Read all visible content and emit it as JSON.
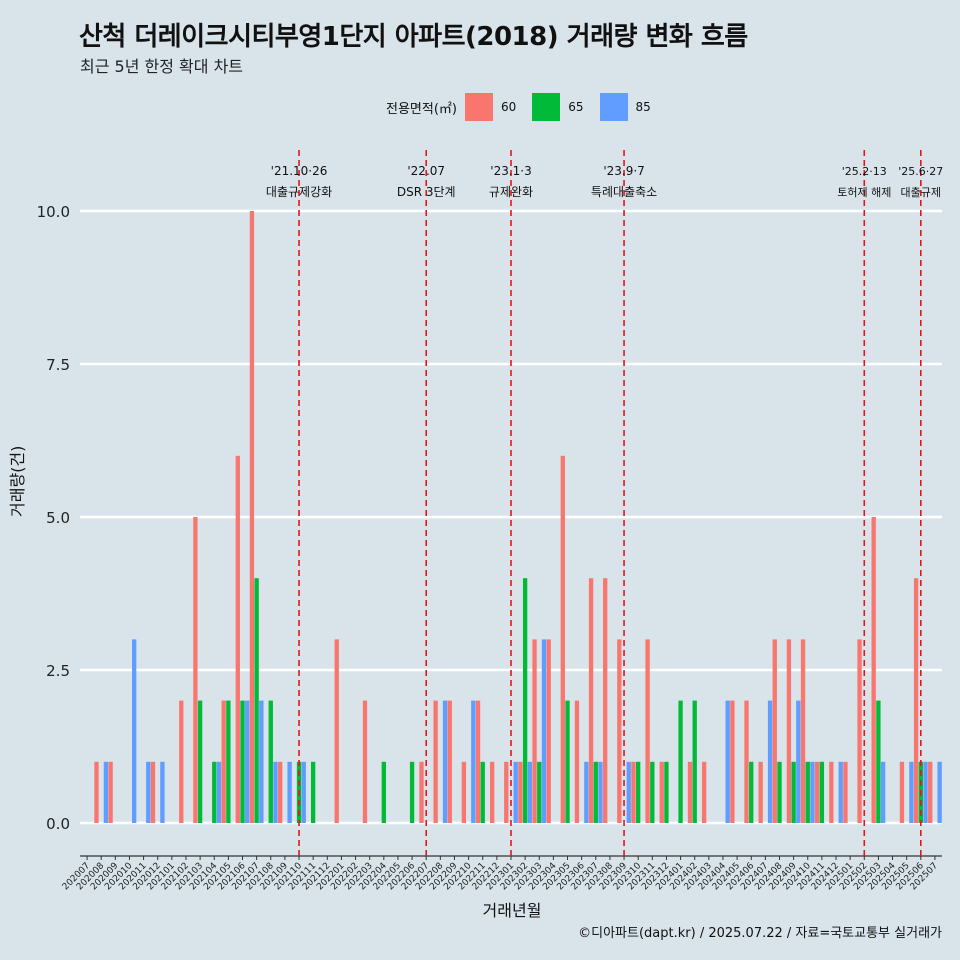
{
  "chart_data": {
    "type": "bar",
    "title": "산척 더레이크시티부영1단지 아파트(2018) 거래량 변화 흐름",
    "subtitle": "최근 5년 한정 확대 차트",
    "xlabel": "거래년월",
    "ylabel": "거래량(건)",
    "ylim": [
      0,
      10
    ],
    "yticks": [
      "0.0",
      "2.5",
      "5.0",
      "7.5",
      "10.0"
    ],
    "legend": {
      "title": "전용면적(㎡)",
      "position": "top",
      "items": [
        {
          "label": "60",
          "color": "#f8766d"
        },
        {
          "label": "65",
          "color": "#00ba38"
        },
        {
          "label": "85",
          "color": "#619cff"
        }
      ]
    },
    "categories": [
      "202007",
      "202008",
      "202009",
      "202010",
      "202011",
      "202012",
      "202101",
      "202102",
      "202103",
      "202104",
      "202105",
      "202106",
      "202107",
      "202108",
      "202109",
      "202110",
      "202111",
      "202112",
      "202201",
      "202202",
      "202203",
      "202204",
      "202205",
      "202206",
      "202207",
      "202208",
      "202209",
      "202210",
      "202211",
      "202212",
      "202301",
      "202302",
      "202303",
      "202304",
      "202305",
      "202306",
      "202307",
      "202308",
      "202309",
      "202310",
      "202311",
      "202312",
      "202401",
      "202402",
      "202403",
      "202404",
      "202405",
      "202406",
      "202407",
      "202408",
      "202409",
      "202410",
      "202411",
      "202412",
      "202501",
      "202502",
      "202503",
      "202504",
      "202505",
      "202506",
      "202507"
    ],
    "series": [
      {
        "name": "60",
        "values": [
          0,
          1,
          1,
          0,
          0,
          1,
          0,
          2,
          5,
          0,
          2,
          6,
          10,
          0,
          1,
          0,
          0,
          0,
          3,
          0,
          2,
          0,
          0,
          0,
          1,
          2,
          2,
          1,
          2,
          1,
          1,
          1,
          3,
          3,
          6,
          2,
          4,
          4,
          3,
          1,
          3,
          1,
          0,
          1,
          1,
          0,
          2,
          2,
          1,
          3,
          3,
          3,
          1,
          1,
          1,
          3,
          5,
          0,
          1,
          4,
          1
        ]
      },
      {
        "name": "65",
        "values": [
          0,
          0,
          0,
          0,
          0,
          0,
          0,
          0,
          2,
          1,
          2,
          2,
          4,
          2,
          0,
          1,
          1,
          0,
          0,
          0,
          0,
          1,
          0,
          1,
          0,
          0,
          0,
          0,
          1,
          0,
          0,
          4,
          1,
          0,
          2,
          0,
          1,
          0,
          0,
          1,
          1,
          1,
          2,
          2,
          0,
          0,
          0,
          1,
          0,
          1,
          1,
          1,
          1,
          0,
          0,
          0,
          2,
          0,
          0,
          1,
          0
        ]
      },
      {
        "name": "85",
        "values": [
          0,
          1,
          0,
          3,
          1,
          1,
          0,
          0,
          0,
          1,
          0,
          2,
          2,
          1,
          1,
          1,
          0,
          0,
          0,
          0,
          0,
          0,
          0,
          0,
          0,
          2,
          0,
          2,
          0,
          0,
          1,
          1,
          3,
          0,
          0,
          1,
          1,
          0,
          1,
          0,
          0,
          0,
          0,
          0,
          0,
          2,
          0,
          0,
          2,
          0,
          2,
          1,
          0,
          1,
          0,
          0,
          1,
          0,
          1,
          1,
          1
        ]
      }
    ],
    "annotations": [
      {
        "date": "'21.10·26",
        "label": "대출규제강화",
        "category": "202110"
      },
      {
        "date": "'22.07",
        "label": "DSR 3단계",
        "category": "202207"
      },
      {
        "date": "'23.1·3",
        "label": "규제완화",
        "category": "202301"
      },
      {
        "date": "'23.9·7",
        "label": "특례대출축소",
        "category": "202309"
      },
      {
        "date": "'25.2·13",
        "label": "토허제 해제",
        "category": "202502"
      },
      {
        "date": "'25.6·27",
        "label": "대출규제",
        "category": "202506"
      }
    ],
    "grid": true,
    "caption": "©디아파트(dapt.kr) / 2025.07.22 / 자료=국토교통부 실거래가"
  }
}
